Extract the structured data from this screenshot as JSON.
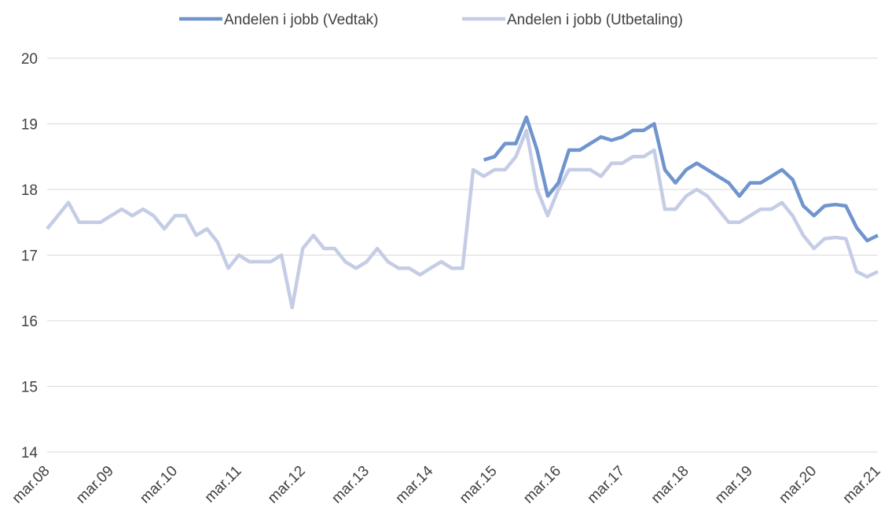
{
  "chart_data": {
    "type": "line",
    "categories": [
      "mar.08",
      null,
      null,
      null,
      null,
      null,
      "mar.09",
      null,
      null,
      null,
      null,
      null,
      "mar.10",
      null,
      null,
      null,
      null,
      null,
      "mar.11",
      null,
      null,
      null,
      null,
      null,
      "mar.12",
      null,
      null,
      null,
      null,
      null,
      "mar.13",
      null,
      null,
      null,
      null,
      null,
      "mar.14",
      null,
      null,
      null,
      null,
      null,
      "mar.15",
      null,
      null,
      null,
      null,
      null,
      "mar.16",
      null,
      null,
      null,
      null,
      null,
      "mar.17",
      null,
      null,
      null,
      null,
      null,
      "mar.18",
      null,
      null,
      null,
      null,
      null,
      "mar.19",
      null,
      null,
      null,
      null,
      null,
      "mar.20",
      null,
      null,
      null,
      null,
      null,
      "mar.21"
    ],
    "series": [
      {
        "name": "Andelen i jobb (Vedtak)",
        "color": "#7094cd",
        "values": [
          null,
          null,
          null,
          null,
          null,
          null,
          null,
          null,
          null,
          null,
          null,
          null,
          null,
          null,
          null,
          null,
          null,
          null,
          null,
          null,
          null,
          null,
          null,
          null,
          null,
          null,
          null,
          null,
          null,
          null,
          null,
          null,
          null,
          null,
          null,
          null,
          null,
          null,
          null,
          null,
          null,
          18.45,
          18.5,
          18.7,
          18.7,
          19.1,
          18.6,
          17.9,
          18.1,
          18.6,
          18.6,
          18.7,
          18.8,
          18.75,
          18.8,
          18.9,
          18.9,
          19.0,
          18.3,
          18.1,
          18.3,
          18.4,
          18.3,
          18.2,
          18.1,
          17.9,
          18.1,
          18.1,
          18.2,
          18.3,
          18.15,
          17.75,
          17.6,
          17.75,
          17.77,
          17.75,
          17.42,
          17.22,
          17.3
        ]
      },
      {
        "name": "Andelen i jobb (Utbetaling)",
        "color": "#c5cde6",
        "values": [
          17.4,
          17.6,
          17.8,
          17.5,
          17.5,
          17.5,
          17.6,
          17.7,
          17.6,
          17.7,
          17.6,
          17.4,
          17.6,
          17.6,
          17.3,
          17.4,
          17.2,
          16.8,
          17.0,
          16.9,
          16.9,
          16.9,
          17.0,
          16.2,
          17.1,
          17.3,
          17.1,
          17.1,
          16.9,
          16.8,
          16.9,
          17.1,
          16.9,
          16.8,
          16.8,
          16.7,
          16.8,
          16.9,
          16.8,
          16.8,
          18.3,
          18.2,
          18.3,
          18.3,
          18.5,
          18.9,
          18.0,
          17.6,
          18.0,
          18.3,
          18.3,
          18.3,
          18.2,
          18.4,
          18.4,
          18.5,
          18.5,
          18.6,
          17.7,
          17.7,
          17.9,
          18.0,
          17.9,
          17.7,
          17.5,
          17.5,
          17.6,
          17.7,
          17.7,
          17.8,
          17.6,
          17.3,
          17.1,
          17.25,
          17.27,
          17.25,
          16.75,
          16.67,
          16.75
        ]
      }
    ],
    "ylim": [
      14,
      20
    ],
    "yticks": [
      14,
      15,
      16,
      17,
      18,
      19,
      20
    ],
    "grid": true,
    "legend": "top"
  }
}
